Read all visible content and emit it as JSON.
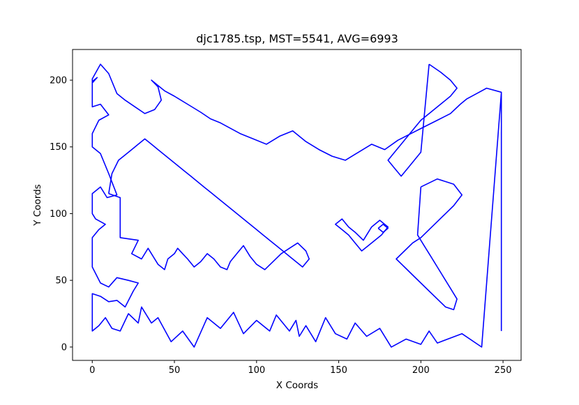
{
  "chart_data": {
    "type": "line",
    "title": "djc1785.tsp, MST=5541, AVG=6993",
    "xlabel": "X Coords",
    "ylabel": "Y Coords",
    "xlim": [
      -12,
      261
    ],
    "ylim": [
      -10,
      223
    ],
    "xticks": [
      0,
      50,
      100,
      150,
      200,
      250
    ],
    "yticks": [
      0,
      50,
      100,
      150,
      200
    ],
    "grid": false,
    "legend": "none",
    "series": [
      {
        "color": "#0000ff",
        "x": [
          249,
          249,
          237,
          225,
          210,
          205,
          200,
          191,
          182,
          175,
          167,
          160,
          155,
          148,
          142,
          136,
          130,
          126,
          124,
          120,
          112,
          108,
          100,
          92,
          86,
          78,
          70,
          62,
          55,
          48,
          40,
          36,
          30,
          28,
          22,
          17,
          12,
          8,
          4,
          0,
          0,
          5,
          10,
          15,
          20,
          25,
          28,
          22,
          15,
          10,
          5,
          0,
          0,
          4,
          8,
          2,
          0,
          0,
          5,
          9,
          15,
          10,
          5,
          0,
          0,
          4,
          10,
          5,
          0,
          0,
          3,
          0,
          0,
          5,
          10,
          15,
          20,
          26,
          32,
          38,
          42,
          40,
          36,
          44,
          50,
          58,
          66,
          72,
          78,
          84,
          90,
          98,
          106,
          114,
          122,
          130,
          138,
          146,
          154,
          162,
          170,
          178,
          186,
          194,
          202,
          210,
          218,
          224,
          228,
          234,
          240,
          249
        ],
        "y": [
          12,
          191,
          0,
          10,
          3,
          12,
          2,
          6,
          0,
          14,
          8,
          18,
          6,
          10,
          22,
          4,
          16,
          8,
          20,
          12,
          24,
          12,
          20,
          10,
          26,
          14,
          22,
          0,
          12,
          4,
          22,
          18,
          30,
          18,
          25,
          12,
          14,
          22,
          16,
          12,
          40,
          38,
          34,
          35,
          30,
          42,
          48,
          50,
          52,
          45,
          48,
          60,
          82,
          88,
          92,
          96,
          100,
          115,
          120,
          112,
          114,
          130,
          145,
          150,
          160,
          170,
          174,
          182,
          180,
          199,
          202,
          198,
          201,
          212,
          205,
          190,
          185,
          180,
          175,
          178,
          185,
          195,
          200,
          192,
          188,
          182,
          176,
          171,
          168,
          164,
          160,
          156,
          152,
          158,
          162,
          154,
          148,
          143,
          140,
          146,
          152,
          148,
          155,
          160,
          165,
          170,
          175,
          182,
          186,
          190,
          194,
          191
        ]
      },
      {
        "color": "#0000ff",
        "x": [
          10,
          17,
          17,
          28,
          24,
          30,
          34,
          40,
          44,
          46,
          50,
          52,
          55,
          58,
          62,
          66,
          70,
          74,
          78,
          82,
          84,
          88,
          92,
          96,
          100,
          105,
          110,
          115,
          120,
          125,
          130,
          132,
          128,
          124,
          120,
          116,
          112,
          108,
          104,
          100,
          96,
          92,
          88,
          84,
          80,
          76,
          72,
          68,
          64,
          60,
          56,
          52,
          48,
          44,
          40,
          36,
          32,
          28,
          24,
          20,
          16,
          12,
          10
        ],
        "y": [
          115,
          112,
          82,
          80,
          70,
          66,
          74,
          62,
          58,
          66,
          70,
          74,
          70,
          66,
          60,
          64,
          70,
          66,
          60,
          58,
          64,
          70,
          76,
          68,
          62,
          58,
          64,
          70,
          74,
          78,
          72,
          66,
          60,
          64,
          68,
          72,
          76,
          80,
          84,
          88,
          92,
          96,
          100,
          104,
          108,
          112,
          116,
          120,
          124,
          128,
          132,
          136,
          140,
          144,
          148,
          152,
          156,
          152,
          148,
          144,
          140,
          130,
          115
        ]
      },
      {
        "color": "#0000ff",
        "x": [
          160,
          165,
          170,
          175,
          180,
          176,
          172,
          168,
          164,
          160,
          156,
          152,
          148,
          152,
          156,
          160
        ],
        "y": [
          86,
          80,
          90,
          95,
          90,
          84,
          80,
          76,
          72,
          78,
          84,
          88,
          92,
          96,
          90,
          86
        ]
      },
      {
        "color": "#0000ff",
        "x": [
          174,
          177,
          180,
          177,
          174
        ],
        "y": [
          89,
          86,
          89,
          92,
          89
        ]
      },
      {
        "color": "#0000ff",
        "x": [
          200,
          210,
          220,
          225,
          220,
          215,
          210,
          205,
          200,
          195,
          190,
          185,
          190,
          195,
          200,
          205,
          210,
          215,
          220,
          222,
          218,
          214,
          210,
          206,
          202,
          198,
          200
        ],
        "y": [
          120,
          126,
          122,
          114,
          106,
          100,
          94,
          88,
          82,
          78,
          72,
          66,
          60,
          54,
          48,
          42,
          36,
          30,
          28,
          36,
          44,
          52,
          60,
          68,
          76,
          84,
          120
        ]
      },
      {
        "color": "#0000ff",
        "x": [
          205,
          212,
          218,
          222,
          218,
          212,
          206,
          200,
          196,
          192,
          188,
          184,
          180,
          184,
          188,
          192,
          196,
          200,
          205
        ],
        "y": [
          212,
          206,
          200,
          194,
          188,
          182,
          176,
          170,
          164,
          158,
          152,
          146,
          140,
          134,
          128,
          134,
          140,
          146,
          212
        ]
      }
    ]
  }
}
